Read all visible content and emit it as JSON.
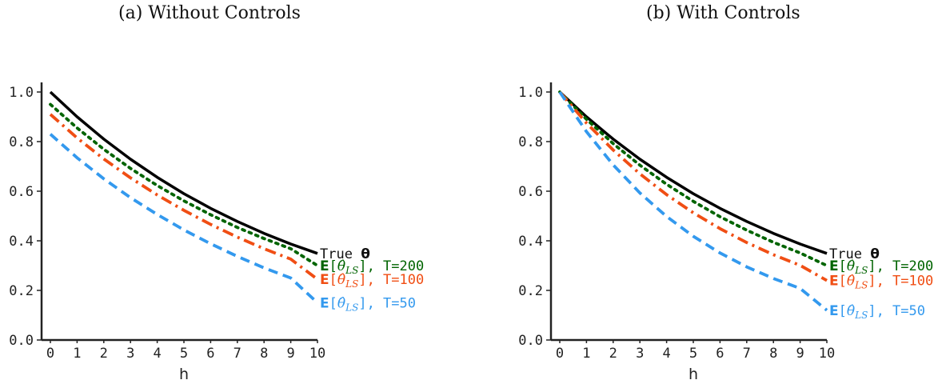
{
  "chart_data": [
    {
      "type": "line",
      "title": "(a) Without Controls",
      "xlabel": "h",
      "ylabel": "",
      "xlim": [
        0,
        10
      ],
      "ylim": [
        0,
        1.0
      ],
      "x": [
        0,
        1,
        2,
        3,
        4,
        5,
        6,
        7,
        8,
        9,
        10
      ],
      "x_ticks": [
        "0",
        "1",
        "2",
        "3",
        "4",
        "5",
        "6",
        "7",
        "8",
        "9",
        "10"
      ],
      "y_ticks": [
        "0.0",
        "0.2",
        "0.4",
        "0.6",
        "0.8",
        "1.0"
      ],
      "series": [
        {
          "name": "True θ",
          "color": "#000000",
          "dash": "solid",
          "values": [
            1.0,
            0.9,
            0.81,
            0.729,
            0.656,
            0.59,
            0.531,
            0.478,
            0.43,
            0.387,
            0.349
          ]
        },
        {
          "name": "E[θ̂LS], T=200",
          "color": "#006400",
          "dash": "dotted",
          "values": [
            0.95,
            0.855,
            0.769,
            0.692,
            0.623,
            0.561,
            0.505,
            0.454,
            0.409,
            0.368,
            0.3
          ]
        },
        {
          "name": "E[θ̂LS], T=100",
          "color": "#F04E14",
          "dash": "dashdot",
          "values": [
            0.91,
            0.815,
            0.73,
            0.654,
            0.585,
            0.523,
            0.466,
            0.415,
            0.368,
            0.326,
            0.245
          ]
        },
        {
          "name": "E[θ̂LS], T=50",
          "color": "#3399EE",
          "dash": "dashed",
          "values": [
            0.83,
            0.735,
            0.65,
            0.574,
            0.506,
            0.444,
            0.388,
            0.337,
            0.291,
            0.25,
            0.15
          ]
        }
      ]
    },
    {
      "type": "line",
      "title": "(b) With Controls",
      "xlabel": "h",
      "ylabel": "",
      "xlim": [
        0,
        10
      ],
      "ylim": [
        0,
        1.0
      ],
      "x": [
        0,
        1,
        2,
        3,
        4,
        5,
        6,
        7,
        8,
        9,
        10
      ],
      "x_ticks": [
        "0",
        "1",
        "2",
        "3",
        "4",
        "5",
        "6",
        "7",
        "8",
        "9",
        "10"
      ],
      "y_ticks": [
        "0.0",
        "0.2",
        "0.4",
        "0.6",
        "0.8",
        "1.0"
      ],
      "series": [
        {
          "name": "True θ",
          "color": "#000000",
          "dash": "solid",
          "values": [
            1.0,
            0.9,
            0.81,
            0.729,
            0.656,
            0.59,
            0.531,
            0.478,
            0.43,
            0.387,
            0.349
          ]
        },
        {
          "name": "E[θ̂LS], T=200",
          "color": "#006400",
          "dash": "dotted",
          "values": [
            1.0,
            0.89,
            0.792,
            0.705,
            0.628,
            0.559,
            0.497,
            0.443,
            0.394,
            0.351,
            0.3
          ]
        },
        {
          "name": "E[θ̂LS], T=100",
          "color": "#F04E14",
          "dash": "dashdot",
          "values": [
            1.0,
            0.875,
            0.766,
            0.67,
            0.586,
            0.513,
            0.449,
            0.393,
            0.344,
            0.301,
            0.24
          ]
        },
        {
          "name": "E[θ̂LS], T=50",
          "color": "#3399EE",
          "dash": "dashed",
          "values": [
            1.0,
            0.84,
            0.706,
            0.593,
            0.498,
            0.418,
            0.351,
            0.295,
            0.248,
            0.208,
            0.12
          ]
        }
      ]
    }
  ]
}
